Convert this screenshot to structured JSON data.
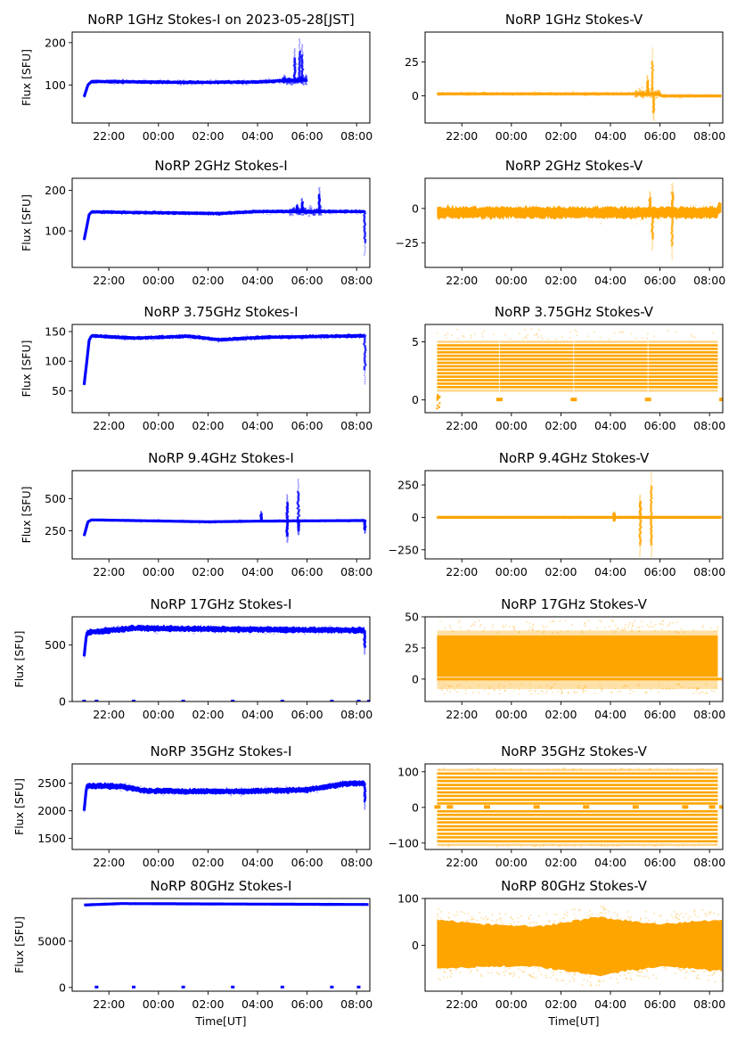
{
  "chart_data": [
    {
      "type": "scatter",
      "title": "NoRP 1GHz Stokes-I on 2023-05-28[JST]",
      "ylabel": "Flux [SFU]",
      "xlabel": "",
      "color": "#0000ff",
      "ylim": [
        10,
        225
      ],
      "yticks": [
        100,
        200
      ],
      "yticklabels": [
        "100",
        "200"
      ],
      "xlim": [
        "20:31",
        "08:32"
      ],
      "xticklabels": [
        "22:00",
        "00:00",
        "02:00",
        "04:00",
        "06:00",
        "08:00"
      ],
      "series": {
        "start": "21:00",
        "end": "06:00",
        "baseline": [
          [
            21.0,
            72
          ],
          [
            21.15,
            100
          ],
          [
            21.3,
            108
          ],
          [
            22.0,
            108
          ],
          [
            1.0,
            106
          ],
          [
            4.0,
            107
          ],
          [
            5.0,
            110
          ],
          [
            6.0,
            112
          ]
        ],
        "spread": 4,
        "spikes": [
          [
            5.5,
            185
          ],
          [
            5.7,
            208
          ],
          [
            5.8,
            195
          ]
        ],
        "burst": [
          5.0,
          6.0
        ]
      }
    },
    {
      "type": "scatter",
      "title": "NoRP 1GHz Stokes-V",
      "ylabel": "",
      "xlabel": "",
      "color": "#ffa500",
      "ylim": [
        -20,
        47
      ],
      "yticks": [
        0,
        25
      ],
      "yticklabels": [
        "0",
        "25"
      ],
      "xlim": [
        "20:31",
        "08:32"
      ],
      "xticklabels": [
        "22:00",
        "00:00",
        "02:00",
        "04:00",
        "06:00",
        "08:00"
      ],
      "series": {
        "start": "21:00",
        "end": "08:30",
        "baseline": [
          [
            21.0,
            1.5
          ],
          [
            6.0,
            1.5
          ],
          [
            6.05,
            0
          ],
          [
            8.5,
            0
          ]
        ],
        "spread": 1,
        "spikes": [
          [
            5.7,
            35
          ],
          [
            5.75,
            -18
          ],
          [
            5.5,
            15
          ]
        ],
        "burst": [
          5.0,
          6.0
        ]
      }
    },
    {
      "type": "scatter",
      "title": "NoRP 2GHz Stokes-I",
      "ylabel": "Flux [SFU]",
      "xlabel": "",
      "color": "#0000ff",
      "ylim": [
        10,
        230
      ],
      "yticks": [
        100,
        200
      ],
      "yticklabels": [
        "100",
        "200"
      ],
      "xlim": [
        "20:31",
        "08:32"
      ],
      "xticklabels": [
        "22:00",
        "00:00",
        "02:00",
        "04:00",
        "06:00",
        "08:00"
      ],
      "series": {
        "start": "21:00",
        "end": "08:20",
        "baseline": [
          [
            21.0,
            78
          ],
          [
            21.2,
            140
          ],
          [
            21.3,
            147
          ],
          [
            2.5,
            143
          ],
          [
            4.0,
            148
          ],
          [
            8.33,
            148
          ]
        ],
        "spread": 4,
        "spikes": [
          [
            5.6,
            165
          ],
          [
            5.8,
            180
          ],
          [
            6.5,
            207
          ],
          [
            8.33,
            40
          ]
        ],
        "burst": [
          5.3,
          6.6
        ]
      }
    },
    {
      "type": "scatter",
      "title": "NoRP 2GHz Stokes-V",
      "ylabel": "",
      "xlabel": "",
      "color": "#ffa500",
      "ylim": [
        -43,
        22
      ],
      "yticks": [
        0,
        -25
      ],
      "yticklabels": [
        "0",
        "−25"
      ],
      "xlim": [
        "20:31",
        "08:32"
      ],
      "xticklabels": [
        "22:00",
        "00:00",
        "02:00",
        "04:00",
        "06:00",
        "08:00"
      ],
      "series": {
        "start": "21:00",
        "end": "08:30",
        "baseline": [
          [
            21.0,
            -3
          ],
          [
            8.33,
            -3
          ],
          [
            8.35,
            0
          ],
          [
            8.5,
            0
          ]
        ],
        "spread": 4,
        "spikes": [
          [
            5.7,
            -30
          ],
          [
            6.5,
            -37
          ],
          [
            6.5,
            18
          ],
          [
            5.6,
            12
          ]
        ],
        "burst": [
          5.3,
          6.6
        ]
      }
    },
    {
      "type": "scatter",
      "title": "NoRP 3.75GHz Stokes-I",
      "ylabel": "Flux [SFU]",
      "xlabel": "",
      "color": "#0000ff",
      "ylim": [
        13,
        162
      ],
      "yticks": [
        50,
        100,
        150
      ],
      "yticklabels": [
        "50",
        "100",
        "150"
      ],
      "xlim": [
        "20:31",
        "08:32"
      ],
      "xticklabels": [
        "22:00",
        "00:00",
        "02:00",
        "04:00",
        "06:00",
        "08:00"
      ],
      "series": {
        "start": "21:00",
        "end": "08:20",
        "baseline": [
          [
            21.0,
            60
          ],
          [
            21.2,
            135
          ],
          [
            21.3,
            143
          ],
          [
            23.0,
            139
          ],
          [
            1.25,
            142
          ],
          [
            2.5,
            136
          ],
          [
            4.0,
            140
          ],
          [
            8.33,
            143
          ]
        ],
        "spread": 3,
        "spikes": [
          [
            8.33,
            62
          ]
        ],
        "burst": null
      }
    },
    {
      "type": "scatter",
      "title": "NoRP 3.75GHz Stokes-V",
      "ylabel": "",
      "xlabel": "",
      "color": "#ffa500",
      "ylim": [
        -1.1,
        6.5
      ],
      "yticks": [
        0,
        5
      ],
      "yticklabels": [
        "0",
        "5"
      ],
      "xlim": [
        "20:31",
        "08:32"
      ],
      "xticklabels": [
        "22:00",
        "00:00",
        "02:00",
        "04:00",
        "06:00",
        "08:00"
      ],
      "series": {
        "start": "21:00",
        "end": "08:20",
        "levels": [
          0.8,
          1.1,
          1.4,
          1.7,
          2.0,
          2.3,
          2.6,
          2.9,
          3.2,
          3.5,
          3.8,
          4.1,
          4.4,
          4.7,
          5.0
        ],
        "zero_marks": [
          "23:30",
          "02:30",
          "05:30",
          "08:30"
        ],
        "spread": 0
      }
    },
    {
      "type": "scatter",
      "title": "NoRP 9.4GHz Stokes-I",
      "ylabel": "Flux [SFU]",
      "xlabel": "",
      "color": "#0000ff",
      "ylim": [
        30,
        720
      ],
      "yticks": [
        250,
        500
      ],
      "yticklabels": [
        "250",
        "500"
      ],
      "xlim": [
        "20:31",
        "08:32"
      ],
      "xticklabels": [
        "22:00",
        "00:00",
        "02:00",
        "04:00",
        "06:00",
        "08:00"
      ],
      "series": {
        "start": "21:00",
        "end": "08:20",
        "baseline": [
          [
            21.0,
            210
          ],
          [
            21.15,
            320
          ],
          [
            21.3,
            335
          ],
          [
            2.0,
            320
          ],
          [
            4.0,
            325
          ],
          [
            8.33,
            330
          ]
        ],
        "spread": 8,
        "spikes": [
          [
            4.15,
            400
          ],
          [
            5.2,
            530
          ],
          [
            5.2,
            160
          ],
          [
            5.65,
            650
          ],
          [
            5.65,
            220
          ],
          [
            8.33,
            230
          ]
        ],
        "burst": null
      }
    },
    {
      "type": "scatter",
      "title": "NoRP 9.4GHz Stokes-V",
      "ylabel": "",
      "xlabel": "",
      "color": "#ffa500",
      "ylim": [
        -320,
        360
      ],
      "yticks": [
        -250,
        0,
        250
      ],
      "yticklabels": [
        "−250",
        "0",
        "250"
      ],
      "xlim": [
        "20:31",
        "08:32"
      ],
      "xticklabels": [
        "22:00",
        "00:00",
        "02:00",
        "04:00",
        "06:00",
        "08:00"
      ],
      "series": {
        "start": "21:00",
        "end": "08:30",
        "baseline": [
          [
            21.0,
            0
          ],
          [
            8.5,
            0
          ]
        ],
        "spread": 6,
        "spikes": [
          [
            5.2,
            170
          ],
          [
            5.2,
            -300
          ],
          [
            5.65,
            340
          ],
          [
            5.65,
            -300
          ],
          [
            4.15,
            -30
          ],
          [
            4.15,
            40
          ]
        ],
        "burst": null
      }
    },
    {
      "type": "scatter",
      "title": "NoRP 17GHz Stokes-I",
      "ylabel": "Flux [SFU]",
      "xlabel": "",
      "color": "#0000ff",
      "ylim": [
        0,
        750
      ],
      "yticks": [
        0,
        500
      ],
      "yticklabels": [
        "0",
        "500"
      ],
      "xlim": [
        "20:31",
        "08:32"
      ],
      "xticklabels": [
        "22:00",
        "00:00",
        "02:00",
        "04:00",
        "06:00",
        "08:00"
      ],
      "series": {
        "start": "21:00",
        "end": "08:20",
        "baseline": [
          [
            21.0,
            400
          ],
          [
            21.1,
            610
          ],
          [
            23.0,
            650
          ],
          [
            2.5,
            640
          ],
          [
            8.33,
            630
          ]
        ],
        "spread": 25,
        "spikes": [
          [
            8.33,
            420
          ]
        ],
        "zero_marks": [
          "21:00",
          "21:30",
          "23:00",
          "01:00",
          "03:00",
          "05:00",
          "07:00",
          "08:05",
          "08:30"
        ],
        "burst": null
      }
    },
    {
      "type": "scatter",
      "title": "NoRP 17GHz Stokes-V",
      "ylabel": "",
      "xlabel": "",
      "color": "#ffa500",
      "ylim": [
        -18,
        50
      ],
      "yticks": [
        0,
        25,
        50
      ],
      "yticklabels": [
        "0",
        "25",
        "50"
      ],
      "xlim": [
        "20:31",
        "08:32"
      ],
      "xticklabels": [
        "22:00",
        "00:00",
        "02:00",
        "04:00",
        "06:00",
        "08:00"
      ],
      "series": {
        "start": "21:00",
        "end": "08:20",
        "band": [
          2,
          35
        ],
        "outer": [
          -12,
          45
        ],
        "zero_line": true
      }
    },
    {
      "type": "scatter",
      "title": "NoRP 35GHz Stokes-I",
      "ylabel": "Flux [SFU]",
      "xlabel": "",
      "color": "#0000ff",
      "ylim": [
        1300,
        2850
      ],
      "yticks": [
        1500,
        2000,
        2500
      ],
      "yticklabels": [
        "1500",
        "2000",
        "2500"
      ],
      "xlim": [
        "20:31",
        "08:32"
      ],
      "xticklabels": [
        "22:00",
        "00:00",
        "02:00",
        "04:00",
        "06:00",
        "08:00"
      ],
      "series": {
        "start": "21:00",
        "end": "08:20",
        "baseline": [
          [
            21.0,
            2000
          ],
          [
            21.1,
            2460
          ],
          [
            22.5,
            2440
          ],
          [
            23.5,
            2360
          ],
          [
            3.0,
            2350
          ],
          [
            6.0,
            2380
          ],
          [
            7.5,
            2490
          ],
          [
            8.33,
            2500
          ]
        ],
        "spread": 50,
        "spikes": [
          [
            8.33,
            2030
          ]
        ],
        "burst": null
      }
    },
    {
      "type": "scatter",
      "title": "NoRP 35GHz Stokes-V",
      "ylabel": "",
      "xlabel": "",
      "color": "#ffa500",
      "ylim": [
        -118,
        122
      ],
      "yticks": [
        -100,
        0,
        100
      ],
      "yticklabels": [
        "−100",
        "0",
        "100"
      ],
      "xlim": [
        "20:31",
        "08:32"
      ],
      "xticklabels": [
        "22:00",
        "00:00",
        "02:00",
        "04:00",
        "06:00",
        "08:00"
      ],
      "series": {
        "start": "21:00",
        "end": "08:20",
        "levels": [
          -105,
          -95,
          -84,
          -74,
          -63,
          -53,
          -42,
          -32,
          -21,
          -11,
          11,
          21,
          32,
          42,
          53,
          63,
          74,
          84,
          95,
          105
        ],
        "zero_marks": [
          "21:00",
          "21:30",
          "23:00",
          "01:00",
          "03:00",
          "05:00",
          "07:00",
          "08:05",
          "08:30"
        ]
      }
    },
    {
      "type": "scatter",
      "title": "NoRP 80GHz Stokes-I",
      "ylabel": "Flux [SFU]",
      "xlabel": "Time[UT]",
      "color": "#0000ff",
      "ylim": [
        -400,
        9600
      ],
      "yticks": [
        0,
        5000
      ],
      "yticklabels": [
        "0",
        "5000"
      ],
      "xlim": [
        "20:31",
        "08:32"
      ],
      "xticklabels": [
        "22:00",
        "00:00",
        "02:00",
        "04:00",
        "06:00",
        "08:00"
      ],
      "series": {
        "start": "21:00",
        "end": "08:30",
        "baseline": [
          [
            21.0,
            8900
          ],
          [
            22.5,
            9050
          ],
          [
            8.5,
            8950
          ]
        ],
        "spread": 80,
        "zero_marks": [
          "21:30",
          "23:00",
          "01:00",
          "03:00",
          "05:00",
          "07:00",
          "08:05"
        ],
        "burst": null
      }
    },
    {
      "type": "scatter",
      "title": "NoRP 80GHz Stokes-V",
      "ylabel": "",
      "xlabel": "Time[UT]",
      "color": "#ffa500",
      "ylim": [
        -98,
        100
      ],
      "yticks": [
        0,
        100
      ],
      "yticklabels": [
        "0",
        "100"
      ],
      "xlim": [
        "20:31",
        "08:32"
      ],
      "xticklabels": [
        "22:00",
        "00:00",
        "02:00",
        "04:00",
        "06:00",
        "08:00"
      ],
      "series": {
        "start": "21:00",
        "end": "08:30",
        "envelope": [
          [
            21.0,
            -50,
            55
          ],
          [
            23.0,
            -45,
            45
          ],
          [
            1.0,
            -45,
            40
          ],
          [
            3.5,
            -65,
            60
          ],
          [
            6.0,
            -45,
            45
          ],
          [
            8.5,
            -55,
            55
          ]
        ],
        "outer_extra": 25
      }
    }
  ]
}
